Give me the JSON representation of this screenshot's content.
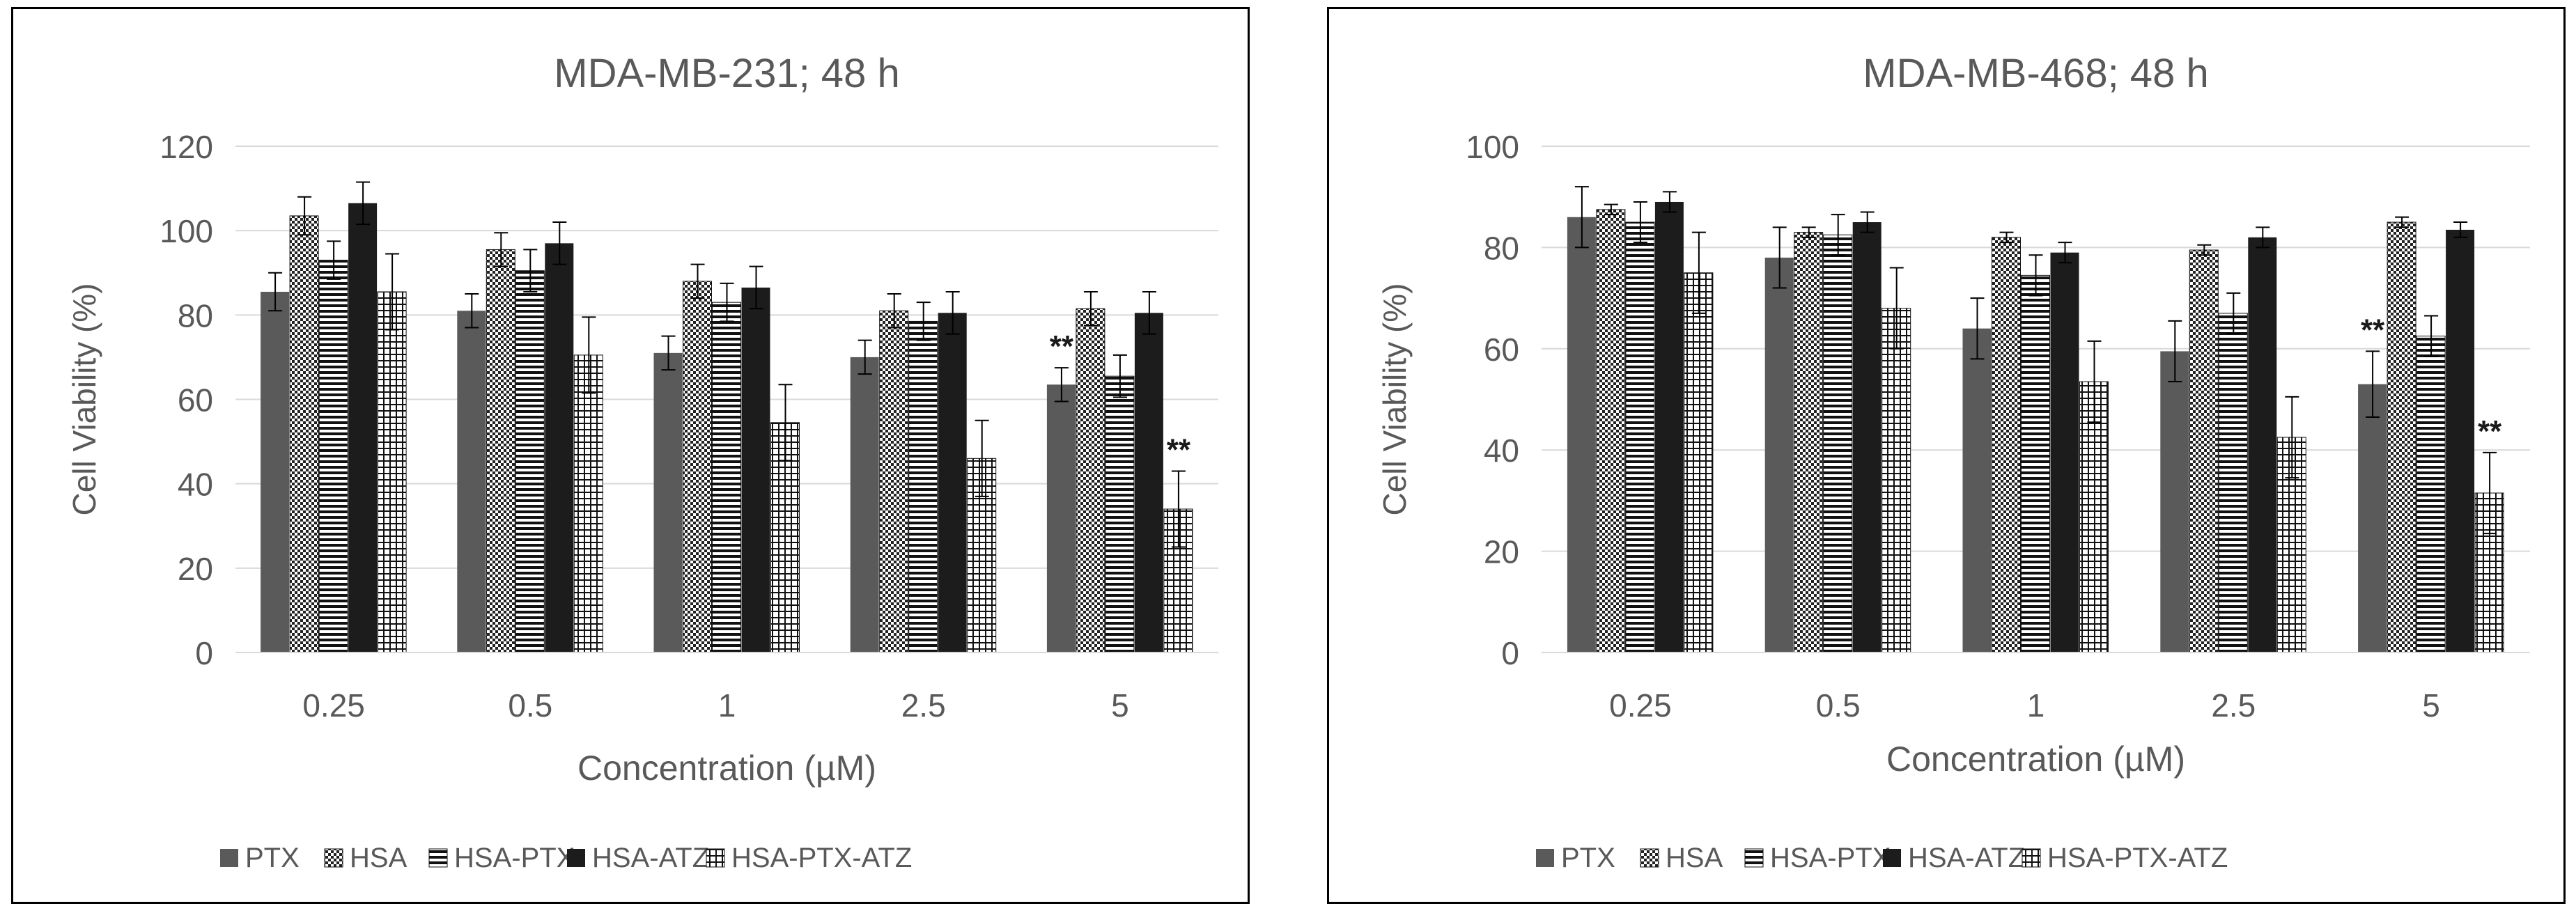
{
  "chart_data": [
    {
      "type": "bar",
      "title": "MDA-MB-231; 48 h",
      "xlabel": "Concentration (µM)",
      "ylabel": "Cell Viability (%)",
      "ylim": [
        0,
        120
      ],
      "yticks": [
        "0",
        "20",
        "40",
        "60",
        "80",
        "100",
        "120"
      ],
      "categories": [
        "0.25",
        "0.5",
        "1",
        "2.5",
        "5"
      ],
      "grid": true,
      "legend_position": "bottom",
      "series": [
        {
          "name": "PTX",
          "values": [
            85.5,
            81,
            71,
            70,
            63.5
          ],
          "errors": [
            4.5,
            4,
            4,
            4,
            4
          ]
        },
        {
          "name": "HSA",
          "values": [
            103.5,
            95.5,
            88,
            81,
            81.5
          ],
          "errors": [
            4.5,
            4,
            4,
            4,
            4
          ]
        },
        {
          "name": "HSA-PTX",
          "values": [
            93,
            90.5,
            83,
            78.5,
            65.5
          ],
          "errors": [
            4.5,
            5,
            4.5,
            4.5,
            5
          ]
        },
        {
          "name": "HSA-ATZ",
          "values": [
            106.5,
            97,
            86.5,
            80.5,
            80.5
          ],
          "errors": [
            5,
            5,
            5,
            5,
            5
          ]
        },
        {
          "name": "HSA-PTX-ATZ",
          "values": [
            85.5,
            70.5,
            54.5,
            46,
            34
          ],
          "errors": [
            9,
            9,
            9,
            9,
            9
          ]
        }
      ],
      "annotations": [
        {
          "text": "**",
          "category": "5",
          "series": "PTX"
        },
        {
          "text": "**",
          "category": "5",
          "series": "HSA-PTX-ATZ"
        }
      ]
    },
    {
      "type": "bar",
      "title": "MDA-MB-468; 48 h",
      "xlabel": "Concentration (µM)",
      "ylabel": "Cell Viability (%)",
      "ylim": [
        0,
        100
      ],
      "yticks": [
        "0",
        "20",
        "40",
        "60",
        "80",
        "100"
      ],
      "categories": [
        "0.25",
        "0.5",
        "1",
        "2.5",
        "5"
      ],
      "grid": true,
      "legend_position": "bottom",
      "series": [
        {
          "name": "PTX",
          "values": [
            86,
            78,
            64,
            59.5,
            53
          ],
          "errors": [
            6,
            6,
            6,
            6,
            6.5
          ]
        },
        {
          "name": "HSA",
          "values": [
            87.5,
            83,
            82,
            79.5,
            85
          ],
          "errors": [
            1,
            1,
            1,
            1,
            1
          ]
        },
        {
          "name": "HSA-PTX",
          "values": [
            85,
            82.5,
            74.5,
            67,
            62.5
          ],
          "errors": [
            4,
            4,
            4,
            4,
            4
          ]
        },
        {
          "name": "HSA-ATZ",
          "values": [
            89,
            85,
            79,
            82,
            83.5
          ],
          "errors": [
            2,
            2,
            2,
            2,
            1.5
          ]
        },
        {
          "name": "HSA-PTX-ATZ",
          "values": [
            75,
            68,
            53.5,
            42.5,
            31.5
          ],
          "errors": [
            8,
            8,
            8,
            8,
            8
          ]
        }
      ],
      "annotations": [
        {
          "text": "**",
          "category": "5",
          "series": "PTX"
        },
        {
          "text": "**",
          "category": "5",
          "series": "HSA-PTX-ATZ"
        }
      ]
    }
  ]
}
